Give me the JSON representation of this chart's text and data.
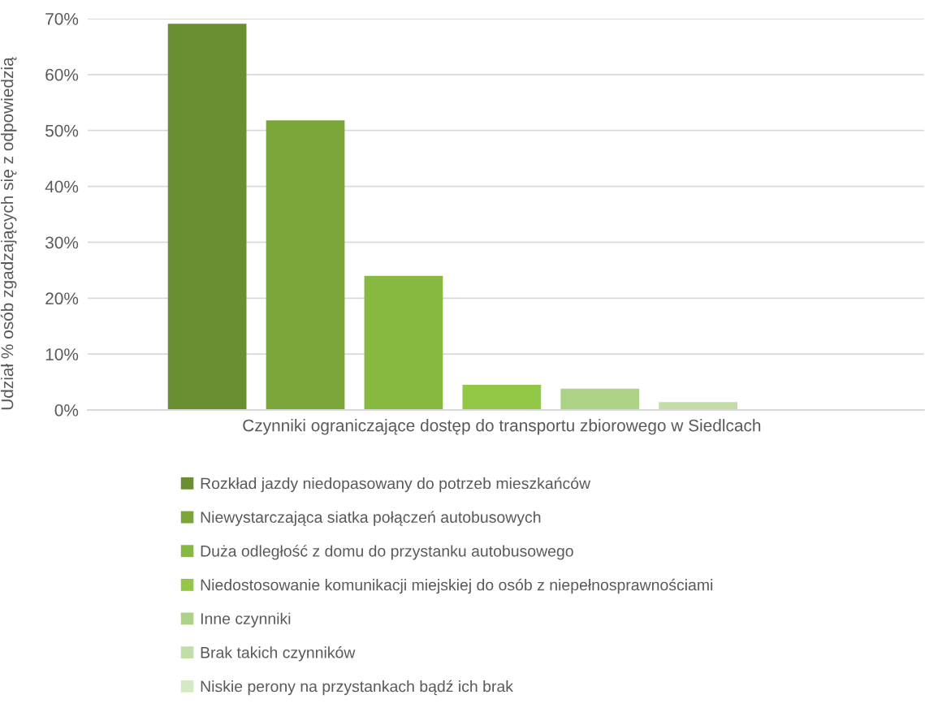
{
  "chart_data": {
    "type": "bar",
    "ylabel": "Udział % osób zgadzających się z odpowiedzią",
    "categories": [
      "Czynniki ograniczające dostęp do transportu zbiorowego w Siedlcach"
    ],
    "series": [
      {
        "name": "Rozkład jazdy niedopasowany do potrzeb mieszkańców",
        "color": "#6a8f32",
        "values": [
          69.1
        ]
      },
      {
        "name": "Niewystarczająca siatka połączeń autobusowych",
        "color": "#7aa538",
        "values": [
          51.8
        ]
      },
      {
        "name": "Duża odległość z domu do przystanku autobusowego",
        "color": "#87b840",
        "values": [
          24.0
        ]
      },
      {
        "name": "Niedostosowanie komunikacji miejskiej do osób z niepełnosprawnościami",
        "color": "#93c746",
        "values": [
          4.5
        ]
      },
      {
        "name": "Inne czynniki",
        "color": "#acd385",
        "values": [
          3.8
        ]
      },
      {
        "name": "Brak takich czynników",
        "color": "#c2dea6",
        "values": [
          1.4
        ]
      },
      {
        "name": "Niskie perony na przystankach bądź ich brak",
        "color": "#d6e9c4",
        "values": [
          0
        ]
      }
    ],
    "ylim": [
      0,
      70
    ],
    "yticks": [
      {
        "value": 0,
        "label": "0%"
      },
      {
        "value": 10,
        "label": "10%"
      },
      {
        "value": 20,
        "label": "20%"
      },
      {
        "value": 30,
        "label": "30%"
      },
      {
        "value": 40,
        "label": "40%"
      },
      {
        "value": 50,
        "label": "50%"
      },
      {
        "value": 60,
        "label": "60%"
      },
      {
        "value": 70,
        "label": "70%"
      }
    ],
    "grid": "y",
    "legend": "bottom"
  }
}
